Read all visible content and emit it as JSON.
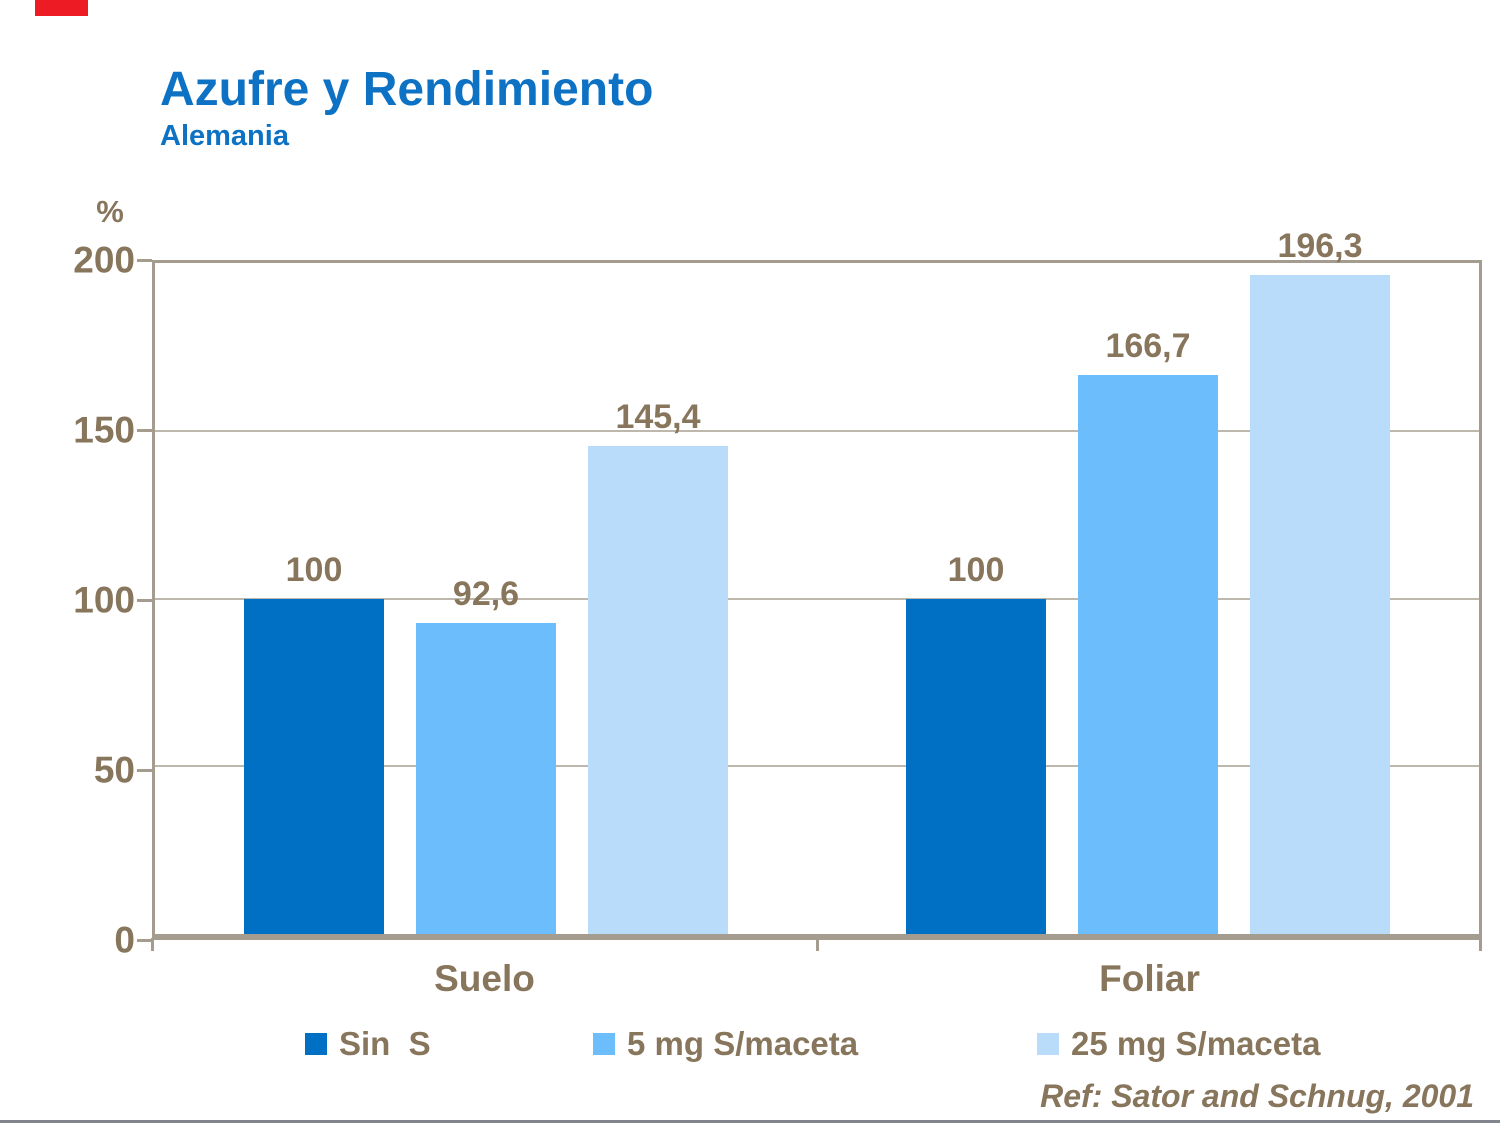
{
  "slide": {
    "title": "Azufre y Rendimiento",
    "subtitle": "Alemania",
    "reference": "Ref: Sator and Schnug, 2001"
  },
  "colors": {
    "background": "#FFFFFF",
    "title_blue": "#0D72C4",
    "text_brown": "#87755C",
    "plot_border": "#A59C90",
    "gridline": "#BEB7AC",
    "accent_red": "#ED1B23",
    "bottom_line_gray": "#80858E"
  },
  "chart_data": {
    "type": "bar",
    "title": "Azufre y Rendimiento",
    "subtitle": "Alemania",
    "xlabel": "",
    "ylabel": "%",
    "ylim": [
      0,
      200
    ],
    "yticks": [
      0,
      50,
      100,
      150,
      200
    ],
    "grid": true,
    "legend_position": "bottom",
    "categories": [
      "Suelo",
      "Foliar"
    ],
    "series": [
      {
        "name": "Sin  S",
        "color": "#0070C4",
        "values": [
          100,
          100
        ],
        "display_labels": [
          "100",
          "100"
        ]
      },
      {
        "name": "5 mg S/maceta",
        "color": "#6BBDFC",
        "values": [
          92.6,
          166.7
        ],
        "display_labels": [
          "92,6",
          "166,7"
        ]
      },
      {
        "name": "25 mg S/maceta",
        "color": "#BADCFB",
        "values": [
          145.4,
          196.3
        ],
        "display_labels": [
          "145,4",
          "196,3"
        ]
      }
    ]
  }
}
